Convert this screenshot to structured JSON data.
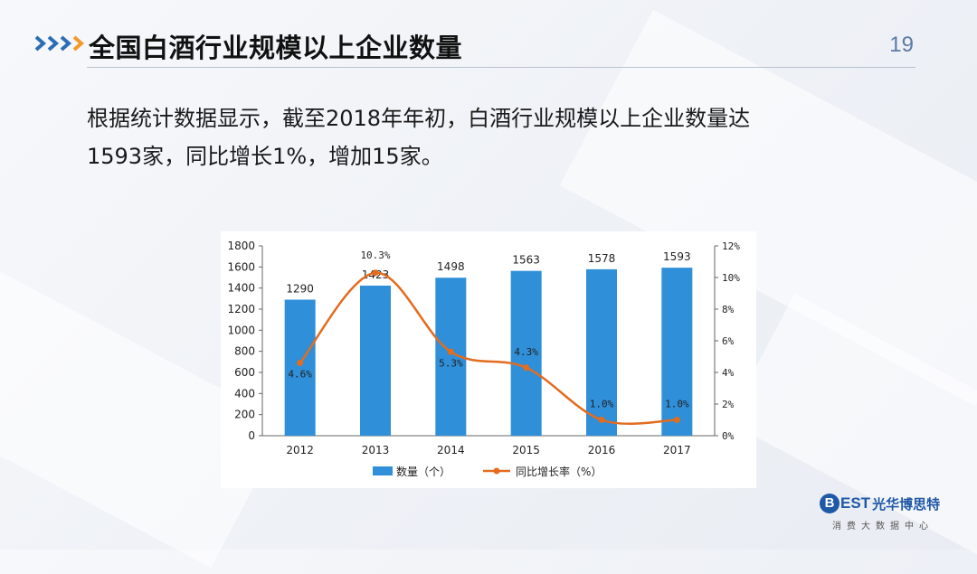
{
  "slide": {
    "title": "全国白酒行业规模以上企业数量",
    "page_number": "19",
    "body_line1": "根据统计数据显示，截至2018年年初，白酒行业规模以上企业数量达",
    "body_line2": "1593家，同比增长1%，增加15家。"
  },
  "logo": {
    "mark": "B",
    "latin": "EST",
    "chinese": "光华博思特",
    "tagline": "消费大数据中心"
  },
  "colors": {
    "accent_blue": "#2e75b6",
    "bar_blue": "#2f8fd8",
    "line_orange": "#e36c1e",
    "chevron_blue": "#2a6fb6",
    "chevron_orange": "#f39a2b"
  },
  "chart_data": {
    "type": "bar",
    "categories": [
      "2012",
      "2013",
      "2014",
      "2015",
      "2016",
      "2017"
    ],
    "series": [
      {
        "name": "数量（个）",
        "type": "bar",
        "axis": "left",
        "values": [
          1290,
          1423,
          1498,
          1563,
          1578,
          1593
        ],
        "labels": [
          "1290",
          "1423",
          "1498",
          "1563",
          "1578",
          "1593"
        ]
      },
      {
        "name": "同比增长率（%）",
        "type": "line",
        "axis": "right",
        "values": [
          4.6,
          10.3,
          5.3,
          4.3,
          1.0,
          1.0
        ],
        "labels": [
          "4.6%",
          "10.3%",
          "5.3%",
          "4.3%",
          "1.0%",
          "1.0%"
        ]
      }
    ],
    "ylim_left": [
      0,
      1800
    ],
    "yticks_left": [
      "0",
      "200",
      "400",
      "600",
      "800",
      "1000",
      "1200",
      "1400",
      "1600",
      "1800"
    ],
    "ylim_right": [
      0,
      12
    ],
    "yticks_right": [
      "0%",
      "2%",
      "4%",
      "6%",
      "8%",
      "10%",
      "12%"
    ],
    "legend_position": "bottom",
    "grid": false
  }
}
